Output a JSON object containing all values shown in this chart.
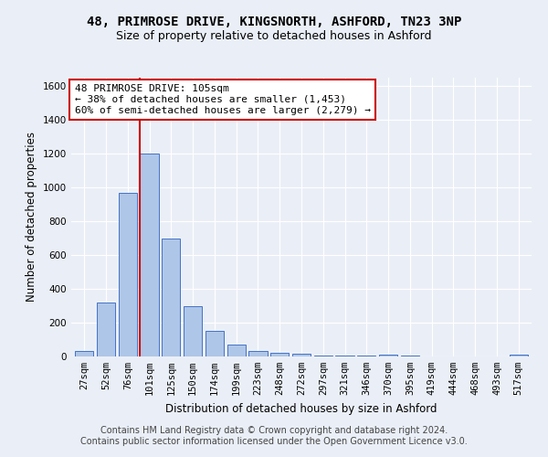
{
  "title_line1": "48, PRIMROSE DRIVE, KINGSNORTH, ASHFORD, TN23 3NP",
  "title_line2": "Size of property relative to detached houses in Ashford",
  "xlabel": "Distribution of detached houses by size in Ashford",
  "ylabel": "Number of detached properties",
  "footer_line1": "Contains HM Land Registry data © Crown copyright and database right 2024.",
  "footer_line2": "Contains public sector information licensed under the Open Government Licence v3.0.",
  "annotation_line1": "48 PRIMROSE DRIVE: 105sqm",
  "annotation_line2": "← 38% of detached houses are smaller (1,453)",
  "annotation_line3": "60% of semi-detached houses are larger (2,279) →",
  "categories": [
    "27sqm",
    "52sqm",
    "76sqm",
    "101sqm",
    "125sqm",
    "150sqm",
    "174sqm",
    "199sqm",
    "223sqm",
    "248sqm",
    "272sqm",
    "297sqm",
    "321sqm",
    "346sqm",
    "370sqm",
    "395sqm",
    "419sqm",
    "444sqm",
    "468sqm",
    "493sqm",
    "517sqm"
  ],
  "values": [
    30,
    320,
    970,
    1200,
    700,
    300,
    150,
    70,
    30,
    20,
    15,
    5,
    5,
    5,
    10,
    3,
    2,
    1,
    1,
    1,
    10
  ],
  "bar_color": "#aec6e8",
  "bar_edge_color": "#4472c4",
  "redline_index": 3,
  "ylim": [
    0,
    1650
  ],
  "yticks": [
    0,
    200,
    400,
    600,
    800,
    1000,
    1200,
    1400,
    1600
  ],
  "bg_color": "#eaeff7",
  "grid_color": "#ffffff",
  "redline_color": "#cc0000",
  "annotation_box_color": "#cc0000",
  "title_fontsize": 10,
  "subtitle_fontsize": 9,
  "axis_label_fontsize": 8.5,
  "tick_fontsize": 7.5,
  "footer_fontsize": 7,
  "annotation_fontsize": 8
}
